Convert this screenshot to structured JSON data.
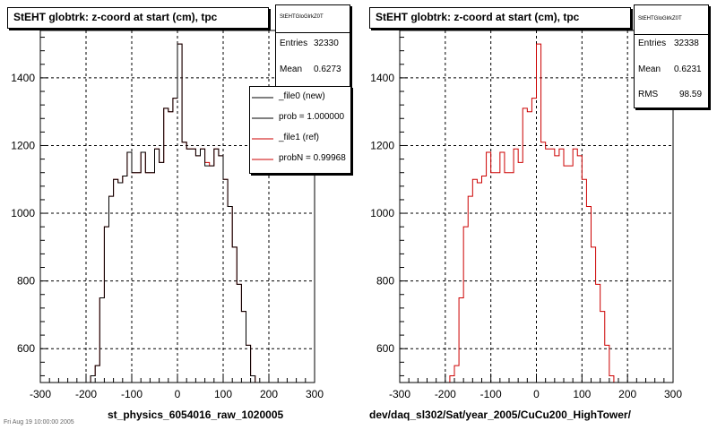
{
  "left_panel": {
    "title": "StEHT globtrk: z-coord at start (cm), tpc",
    "stats": {
      "name": "StEHTGloGlrkZ0T",
      "rows": [
        {
          "label": "Entries",
          "value": "32330"
        },
        {
          "label": "Mean",
          "value": "0.6273"
        }
      ]
    },
    "legend": [
      {
        "label": "_file0 (new)",
        "color": "#000000"
      },
      {
        "label": "prob = 1.000000",
        "color": "#000000"
      },
      {
        "label": "_file1 (ref)",
        "color": "#cc0000"
      },
      {
        "label": "probN = 0.99968",
        "color": "#cc0000"
      }
    ],
    "bottom_label": "st_physics_6054016_raw_1020005"
  },
  "right_panel": {
    "title": "StEHT globtrk: z-coord at start (cm), tpc",
    "stats": {
      "name": "StEHTGloGlrkZ0T",
      "rows": [
        {
          "label": "Entries",
          "value": "32338"
        },
        {
          "label": "Mean",
          "value": "0.6231"
        },
        {
          "label": "RMS",
          "value": "98.59"
        }
      ]
    },
    "bottom_label": "dev/daq_sl302/Sat/year_2005/CuCu200_HighTower/"
  },
  "corner_text": "Fri Aug 19 10:00:00 2005",
  "colors": {
    "new": "#000000",
    "ref": "#cc0000",
    "grid": "#000000"
  },
  "chart_data": [
    {
      "type": "histogram",
      "title": "StEHT globtrk: z-coord at start (cm), tpc",
      "xlim": [
        -300,
        300
      ],
      "ylim": [
        500,
        1540
      ],
      "x_ticks": [
        -300,
        -200,
        -100,
        0,
        100,
        200,
        300
      ],
      "y_ticks": [
        600,
        800,
        1000,
        1200,
        1400
      ],
      "grid": true,
      "bin_width": 10,
      "bin_start": -300,
      "series": [
        {
          "name": "_file1 (ref)",
          "color": "#cc0000",
          "values": [
            500,
            500,
            500,
            500,
            500,
            500,
            500,
            500,
            500,
            500,
            500,
            520,
            550,
            750,
            960,
            1050,
            1100,
            1090,
            1110,
            1180,
            1120,
            1120,
            1180,
            1120,
            1120,
            1190,
            1150,
            1310,
            1300,
            1340,
            1500,
            1210,
            1190,
            1190,
            1170,
            1190,
            1150,
            1140,
            1190,
            1170,
            1100,
            1020,
            900,
            790,
            710,
            610,
            520,
            500,
            500,
            500,
            500,
            500,
            500,
            500,
            500,
            500,
            500,
            500,
            500,
            500
          ]
        },
        {
          "name": "_file0 (new)",
          "color": "#000000",
          "values": [
            500,
            500,
            500,
            500,
            500,
            500,
            500,
            500,
            500,
            500,
            500,
            520,
            550,
            750,
            960,
            1050,
            1100,
            1090,
            1110,
            1180,
            1120,
            1120,
            1180,
            1120,
            1120,
            1190,
            1150,
            1310,
            1300,
            1340,
            1500,
            1210,
            1190,
            1190,
            1170,
            1190,
            1140,
            1140,
            1190,
            1170,
            1100,
            1020,
            900,
            790,
            710,
            610,
            520,
            500,
            500,
            500,
            500,
            500,
            500,
            500,
            500,
            500,
            500,
            500,
            500,
            500
          ]
        }
      ]
    },
    {
      "type": "histogram",
      "title": "StEHT globtrk: z-coord at start (cm), tpc",
      "xlim": [
        -300,
        300
      ],
      "ylim": [
        500,
        1540
      ],
      "x_ticks": [
        -300,
        -200,
        -100,
        0,
        100,
        200,
        300
      ],
      "y_ticks": [
        600,
        800,
        1000,
        1200,
        1400
      ],
      "grid": true,
      "bin_width": 10,
      "bin_start": -300,
      "series": [
        {
          "name": "_file1 (ref)",
          "color": "#cc0000",
          "values": [
            500,
            500,
            500,
            500,
            500,
            500,
            500,
            500,
            500,
            500,
            500,
            520,
            550,
            750,
            960,
            1050,
            1100,
            1090,
            1110,
            1180,
            1120,
            1120,
            1180,
            1120,
            1120,
            1190,
            1150,
            1310,
            1300,
            1340,
            1500,
            1210,
            1190,
            1190,
            1170,
            1190,
            1140,
            1140,
            1190,
            1170,
            1100,
            1020,
            900,
            790,
            710,
            610,
            520,
            500,
            500,
            500,
            500,
            500,
            500,
            500,
            500,
            500,
            500,
            500,
            500,
            500
          ]
        }
      ]
    }
  ]
}
